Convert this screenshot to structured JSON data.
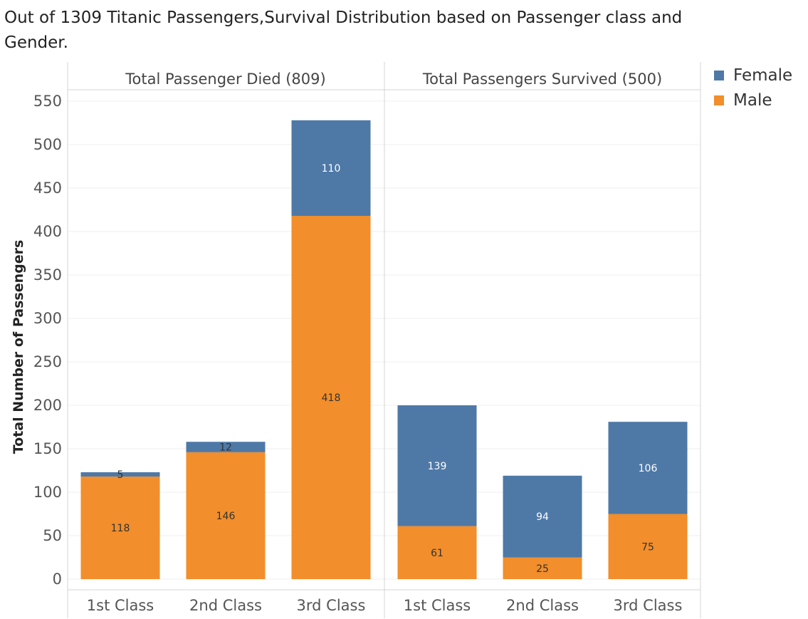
{
  "title": "Out of 1309 Titanic Passengers,Survival Distribution based on Passenger class and Gender.",
  "chart_data": {
    "type": "bar",
    "stacked": true,
    "ylabel": "Total Number of Passengers",
    "ylim": [
      0,
      550
    ],
    "yticks": [
      0,
      50,
      100,
      150,
      200,
      250,
      300,
      350,
      400,
      450,
      500,
      550
    ],
    "grid": true,
    "legend_position": "right",
    "categories": [
      "1st Class",
      "2nd Class",
      "3rd Class"
    ],
    "panels": [
      {
        "title": "Total Passenger Died (809)",
        "series": [
          {
            "name": "Male",
            "values": [
              118,
              146,
              418
            ]
          },
          {
            "name": "Female",
            "values": [
              5,
              12,
              110
            ]
          }
        ]
      },
      {
        "title": "Total Passengers Survived (500)",
        "series": [
          {
            "name": "Male",
            "values": [
              61,
              25,
              75
            ]
          },
          {
            "name": "Female",
            "values": [
              139,
              94,
              106
            ]
          }
        ]
      }
    ]
  },
  "legend": [
    {
      "name": "Female",
      "color": "#4e79a7"
    },
    {
      "name": "Male",
      "color": "#f28e2b"
    }
  ],
  "colors": {
    "Female": "#4e79a7",
    "Male": "#f28e2b"
  }
}
